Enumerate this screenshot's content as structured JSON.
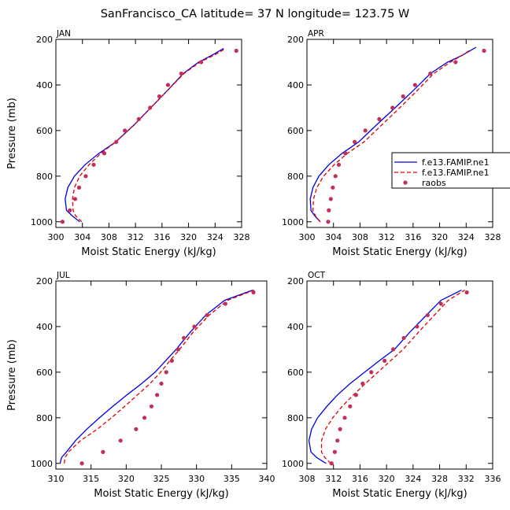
{
  "figure": {
    "title": "SanFrancisco_CA  latitude= 37 N longitude= 123.75 W"
  },
  "legend": {
    "entries": [
      {
        "label": "f.e13.FAMIP.ne1",
        "style": "solid",
        "color": "#0000e0"
      },
      {
        "label": "f.e13.FAMIP.ne1",
        "style": "dashed",
        "color": "#e00000"
      },
      {
        "label": "raobs",
        "style": "marker",
        "color": "#c0305a"
      }
    ]
  },
  "chart_data": [
    {
      "type": "line",
      "label": "JAN",
      "xlabel": "Moist Static Energy (kJ/kg)",
      "ylabel": "Pressure (mb)",
      "xlim": [
        300,
        328
      ],
      "xticks": [
        300,
        304,
        308,
        312,
        316,
        320,
        324,
        328
      ],
      "xtick_labels": [
        "300",
        "304",
        "308",
        "312",
        "316",
        "320",
        "324",
        "328"
      ],
      "ylim": [
        200,
        1025
      ],
      "yticks": [
        200,
        400,
        600,
        800,
        1000
      ],
      "ytick_labels": [
        "200",
        "400",
        "600",
        "800",
        "1000"
      ],
      "series": [
        {
          "name": "f.e13.FAMIP.ne1",
          "kind": "solid",
          "x": [
            303.6,
            302.5,
            301.6,
            301.4,
            301.8,
            302.8,
            304.4,
            306.5,
            309,
            311.8,
            314.3,
            316.8,
            319.2,
            321.5,
            323.5,
            325.3
          ],
          "y": [
            1000,
            975,
            950,
            900,
            850,
            800,
            750,
            700,
            650,
            575,
            500,
            425,
            350,
            300,
            270,
            240
          ]
        },
        {
          "name": "f.e13.FAMIP.ne1",
          "kind": "dashed",
          "x": [
            303.9,
            303,
            302.6,
            302.5,
            302.8,
            303.6,
            305,
            306.8,
            309,
            311.8,
            314.3,
            316.8,
            319.3,
            321.7,
            323.8,
            325.6
          ],
          "y": [
            1000,
            975,
            950,
            900,
            850,
            800,
            750,
            700,
            650,
            575,
            500,
            425,
            350,
            300,
            270,
            240
          ]
        },
        {
          "name": "raobs",
          "kind": "marker",
          "x": [
            301,
            302.1,
            302.9,
            303.5,
            304.5,
            305.7,
            307.3,
            309.1,
            310.4,
            312.5,
            314.2,
            315.6,
            316.9,
            318.9,
            321.9,
            327.2
          ],
          "y": [
            1000,
            950,
            900,
            850,
            800,
            750,
            700,
            650,
            600,
            550,
            500,
            450,
            400,
            350,
            300,
            250
          ]
        }
      ]
    },
    {
      "type": "line",
      "label": "APR",
      "xlabel": "Moist Static Energy (kJ/kg)",
      "ylabel": "",
      "xlim": [
        300,
        328
      ],
      "xticks": [
        300,
        304,
        308,
        312,
        316,
        320,
        324,
        328
      ],
      "xtick_labels": [
        "300",
        "304",
        "308",
        "312",
        "316",
        "320",
        "324",
        "328"
      ],
      "ylim": [
        200,
        1025
      ],
      "yticks": [
        200,
        400,
        600,
        800,
        1000
      ],
      "ytick_labels": [
        "200",
        "400",
        "600",
        "800",
        "1000"
      ],
      "series": [
        {
          "name": "f.e13.FAMIP.ne1",
          "kind": "solid",
          "x": [
            302,
            301.2,
            300.6,
            300.5,
            300.9,
            301.8,
            303.3,
            305.3,
            307.8,
            310.5,
            313.3,
            316,
            318.6,
            321.2,
            323.4,
            325.5
          ],
          "y": [
            1000,
            975,
            950,
            900,
            850,
            800,
            750,
            700,
            650,
            575,
            500,
            425,
            350,
            300,
            270,
            235
          ]
        },
        {
          "name": "f.e13.FAMIP.ne1",
          "kind": "dashed",
          "x": [
            302,
            301.3,
            300.9,
            301,
            301.5,
            302.5,
            304.1,
            306.1,
            308.6,
            311.3,
            314,
            316.6,
            319.1,
            321.6,
            323.4,
            324.7
          ],
          "y": [
            1000,
            975,
            950,
            900,
            850,
            800,
            750,
            700,
            650,
            575,
            500,
            425,
            350,
            300,
            270,
            245
          ]
        },
        {
          "name": "raobs",
          "kind": "marker",
          "x": [
            303.2,
            303.3,
            303.6,
            303.9,
            304.3,
            304.8,
            305.8,
            307.2,
            308.8,
            310.9,
            312.9,
            314.5,
            316.3,
            318.6,
            322.4,
            326.7
          ],
          "y": [
            1000,
            950,
            900,
            850,
            800,
            750,
            700,
            650,
            600,
            550,
            500,
            450,
            400,
            350,
            300,
            250
          ]
        }
      ]
    },
    {
      "type": "line",
      "label": "JUL",
      "xlabel": "Moist Static Energy (kJ/kg)",
      "ylabel": "Pressure (mb)",
      "xlim": [
        310,
        340
      ],
      "xticks": [
        310,
        315,
        320,
        325,
        330,
        335,
        340
      ],
      "xtick_labels": [
        "310",
        "315",
        "320",
        "325",
        "330",
        "335",
        "340"
      ],
      "ylim": [
        200,
        1025
      ],
      "yticks": [
        200,
        400,
        600,
        800,
        1000
      ],
      "ytick_labels": [
        "200",
        "400",
        "600",
        "800",
        "1000"
      ],
      "series": [
        {
          "name": "f.e13.FAMIP.ne1",
          "kind": "solid",
          "x": [
            310.6,
            310.8,
            311.5,
            312.8,
            314.4,
            316.2,
            318.1,
            320.1,
            322.2,
            324.1,
            325.6,
            327.1,
            329.1,
            331.3,
            334,
            338
          ],
          "y": [
            1000,
            975,
            950,
            900,
            850,
            800,
            750,
            700,
            650,
            600,
            550,
            500,
            425,
            350,
            285,
            240
          ]
        },
        {
          "name": "f.e13.FAMIP.ne1",
          "kind": "dashed",
          "x": [
            311.2,
            311.3,
            311.8,
            313.5,
            315.9,
            317.9,
            319.8,
            321.6,
            323.4,
            324.9,
            326.2,
            327.6,
            329.5,
            331.8,
            334.4,
            338.2
          ],
          "y": [
            1000,
            975,
            950,
            900,
            850,
            800,
            750,
            700,
            650,
            600,
            550,
            500,
            425,
            350,
            285,
            240
          ]
        },
        {
          "name": "raobs",
          "kind": "marker",
          "x": [
            313.7,
            316.7,
            319.2,
            321.4,
            322.6,
            323.6,
            324.4,
            325,
            325.7,
            326.5,
            327.4,
            328.2,
            329.7,
            331.5,
            334.1,
            338.1
          ],
          "y": [
            1000,
            950,
            900,
            850,
            800,
            750,
            700,
            650,
            600,
            550,
            500,
            450,
            400,
            350,
            300,
            250
          ]
        }
      ]
    },
    {
      "type": "line",
      "label": "OCT",
      "xlabel": "Moist Static Energy (kJ/kg)",
      "ylabel": "",
      "xlim": [
        308,
        336
      ],
      "xticks": [
        308,
        312,
        316,
        320,
        324,
        328,
        332,
        336
      ],
      "xtick_labels": [
        "308",
        "312",
        "316",
        "320",
        "324",
        "328",
        "332",
        "336"
      ],
      "ylim": [
        200,
        1025
      ],
      "yticks": [
        200,
        400,
        600,
        800,
        1000
      ],
      "ytick_labels": [
        "200",
        "400",
        "600",
        "800",
        "1000"
      ],
      "series": [
        {
          "name": "f.e13.FAMIP.ne1",
          "kind": "solid",
          "x": [
            310.9,
            309.5,
            308.6,
            308.3,
            308.7,
            309.6,
            311,
            312.6,
            314.5,
            316.7,
            318.9,
            321.2,
            323.5,
            326,
            328.2,
            331.3
          ],
          "y": [
            1000,
            975,
            950,
            900,
            850,
            800,
            750,
            700,
            650,
            600,
            550,
            500,
            425,
            350,
            285,
            240
          ]
        },
        {
          "name": "f.e13.FAMIP.ne1",
          "kind": "dashed",
          "x": [
            311.6,
            310.7,
            310.2,
            310.2,
            310.8,
            311.9,
            313.3,
            315,
            316.8,
            318.7,
            320.6,
            322.5,
            324.8,
            327.2,
            329.3,
            331.8
          ],
          "y": [
            1000,
            975,
            950,
            900,
            850,
            800,
            750,
            700,
            650,
            600,
            550,
            500,
            425,
            350,
            285,
            240
          ]
        },
        {
          "name": "raobs",
          "kind": "marker",
          "x": [
            311.7,
            312.2,
            312.6,
            313,
            313.7,
            314.5,
            315.4,
            316.4,
            317.7,
            319.7,
            321,
            322.6,
            324.6,
            326.2,
            328.2,
            332.1
          ],
          "y": [
            1000,
            950,
            900,
            850,
            800,
            750,
            700,
            650,
            600,
            550,
            500,
            450,
            400,
            350,
            300,
            250
          ]
        }
      ]
    }
  ]
}
